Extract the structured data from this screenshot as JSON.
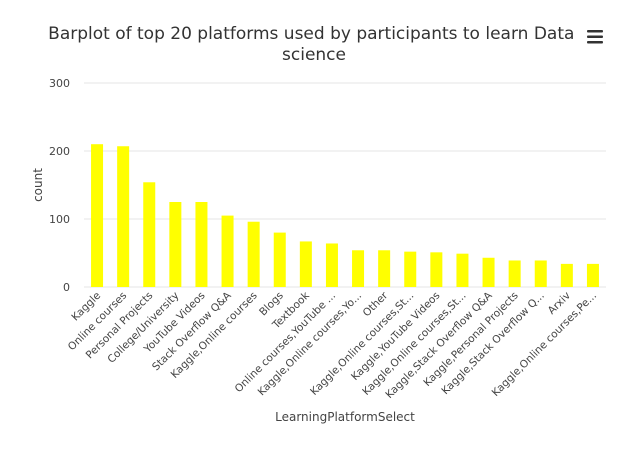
{
  "chart_data": {
    "type": "bar",
    "title": "Barplot of top 20 platforms used by participants to learn Data science",
    "title_lines": [
      "Barplot of top 20 platforms used by participants to learn Data",
      "science"
    ],
    "xlabel": "LearningPlatformSelect",
    "ylabel": "count",
    "ylim": [
      0,
      300
    ],
    "yticks": [
      0,
      100,
      200,
      300
    ],
    "grid": true,
    "bar_color": "#ffff00",
    "categories": [
      "Kaggle",
      "Online courses",
      "Personal Projects",
      "College/University",
      "YouTube Videos",
      "Stack Overflow Q&A",
      "Kaggle,Online courses",
      "Blogs",
      "Textbook",
      "Online courses,YouTube ...",
      "Kaggle,Online courses,Yo...",
      "Other",
      "Kaggle,Online courses,St...",
      "Kaggle,YouTube Videos",
      "Kaggle,Online courses,St...",
      "Kaggle,Stack Overflow Q&A",
      "Kaggle,Personal Projects",
      "Kaggle,Stack Overflow Q...",
      "Arxiv",
      "Kaggle,Online courses,Pe..."
    ],
    "values": [
      210,
      207,
      154,
      125,
      125,
      105,
      96,
      80,
      67,
      64,
      54,
      54,
      52,
      51,
      49,
      43,
      39,
      39,
      34,
      34
    ]
  },
  "toolbar": {
    "menu_icon": "hamburger-menu-icon"
  }
}
